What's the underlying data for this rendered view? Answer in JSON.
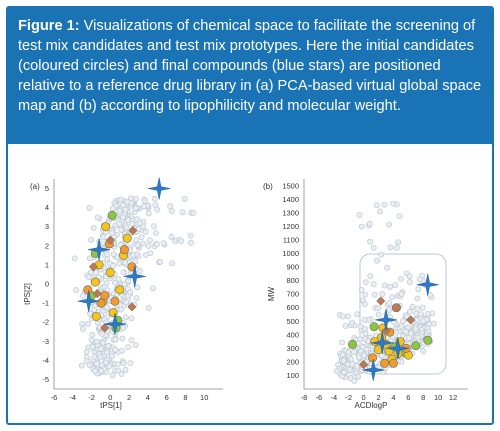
{
  "caption": {
    "label": "Figure 1:",
    "text": " Visualizations of chemical space to facilitate the screening of test mix candidates and test mix prototypes. Here the initial candidates (coloured circles) and final compounds (blue stars) are positioned relative to a reference drug library in (a) PCA-based virtual global space map and (b) according to lipophilicity and molecular weight."
  },
  "colors": {
    "caption_bg": "#1a73b5",
    "library": "#d7dee6",
    "green": "#8dc63f",
    "yellow": "#f5c518",
    "orange": "#f29a2e",
    "brown": "#b97a57",
    "star": "#2f78c4"
  },
  "chart_data": [
    {
      "type": "scatter",
      "panel_label": "(a)",
      "xlabel": "tPS[1]",
      "ylabel": "tPS[2]",
      "xlim": [
        -6,
        12
      ],
      "ylim": [
        -5.5,
        5.5
      ],
      "xticks": [
        -6,
        -4,
        -2,
        0,
        2,
        4,
        6,
        8,
        10
      ],
      "yticks": [
        5,
        4,
        3,
        2,
        1,
        0,
        -1,
        -2,
        -3,
        -4,
        -5
      ],
      "library_region": {
        "description": "grey circles (reference drug library)"
      },
      "series": [
        {
          "marker": "circle",
          "color": "green",
          "points": [
            [
              0.2,
              3.6
            ],
            [
              -1.6,
              1.6
            ],
            [
              -2.0,
              -0.6
            ],
            [
              0.8,
              -1.9
            ],
            [
              0.6,
              -2.3
            ]
          ]
        },
        {
          "marker": "circle",
          "color": "yellow",
          "points": [
            [
              -0.5,
              3.0
            ],
            [
              1.8,
              2.4
            ],
            [
              1.4,
              1.5
            ],
            [
              -1.2,
              1.0
            ],
            [
              0.0,
              0.6
            ],
            [
              -1.6,
              0.1
            ],
            [
              1.0,
              -0.3
            ],
            [
              -0.8,
              -0.9
            ],
            [
              0.3,
              -1.5
            ],
            [
              -1.5,
              -1.7
            ]
          ]
        },
        {
          "marker": "circle",
          "color": "orange",
          "points": [
            [
              -0.1,
              2.1
            ],
            [
              1.5,
              1.8
            ],
            [
              2.3,
              0.9
            ],
            [
              -0.6,
              -0.6
            ],
            [
              -1.0,
              -1.0
            ],
            [
              0.5,
              -0.9
            ],
            [
              -2.4,
              -0.3
            ]
          ]
        },
        {
          "marker": "diamond",
          "color": "brown",
          "points": [
            [
              2.4,
              2.8
            ],
            [
              0.0,
              2.3
            ],
            [
              -1.8,
              0.9
            ],
            [
              -1.4,
              -0.5
            ],
            [
              2.3,
              -1.2
            ],
            [
              -0.6,
              -2.3
            ]
          ]
        },
        {
          "marker": "star",
          "color": "star",
          "points": [
            [
              5.2,
              5.0
            ],
            [
              -1.2,
              1.8
            ],
            [
              2.6,
              0.4
            ],
            [
              -2.3,
              -0.9
            ],
            [
              0.5,
              -2.1
            ]
          ]
        }
      ]
    },
    {
      "type": "scatter",
      "panel_label": "(b)",
      "xlabel": "ACDlogP",
      "ylabel": "MW",
      "xlim": [
        -8,
        14
      ],
      "ylim": [
        0,
        1550
      ],
      "xticks": [
        -8,
        -6,
        -4,
        -2,
        0,
        2,
        4,
        6,
        8,
        10,
        12
      ],
      "yticks": [
        1500,
        1400,
        1300,
        1200,
        1100,
        1000,
        900,
        800,
        700,
        600,
        500,
        400,
        300,
        200,
        100
      ],
      "series": [
        {
          "marker": "circle",
          "color": "green",
          "points": [
            [
              -1.5,
              330
            ],
            [
              4.2,
              310
            ],
            [
              5.5,
              270
            ],
            [
              7.0,
              320
            ],
            [
              8.6,
              360
            ],
            [
              1.4,
              460
            ]
          ]
        },
        {
          "marker": "circle",
          "color": "yellow",
          "points": [
            [
              1.5,
              350
            ],
            [
              2.4,
              380
            ],
            [
              3.0,
              330
            ],
            [
              3.4,
              280
            ],
            [
              2.0,
              290
            ],
            [
              4.6,
              260
            ],
            [
              6.0,
              250
            ],
            [
              3.8,
              220
            ],
            [
              2.6,
              450
            ],
            [
              4.9,
              350
            ]
          ]
        },
        {
          "marker": "circle",
          "color": "orange",
          "points": [
            [
              1.2,
              230
            ],
            [
              2.8,
              190
            ],
            [
              4.0,
              190
            ],
            [
              3.5,
              420
            ],
            [
              5.7,
              300
            ]
          ]
        },
        {
          "marker": "circle",
          "color": "brown",
          "points": [
            [
              4.4,
              600
            ]
          ]
        },
        {
          "marker": "diamond",
          "color": "brown",
          "points": [
            [
              0.0,
              180
            ],
            [
              2.3,
              650
            ],
            [
              3.0,
              430
            ],
            [
              6.3,
              510
            ]
          ]
        },
        {
          "marker": "star",
          "color": "star",
          "points": [
            [
              8.6,
              770
            ],
            [
              3.0,
              510
            ],
            [
              2.5,
              340
            ],
            [
              4.6,
              300
            ],
            [
              1.3,
              140
            ]
          ]
        }
      ]
    }
  ]
}
